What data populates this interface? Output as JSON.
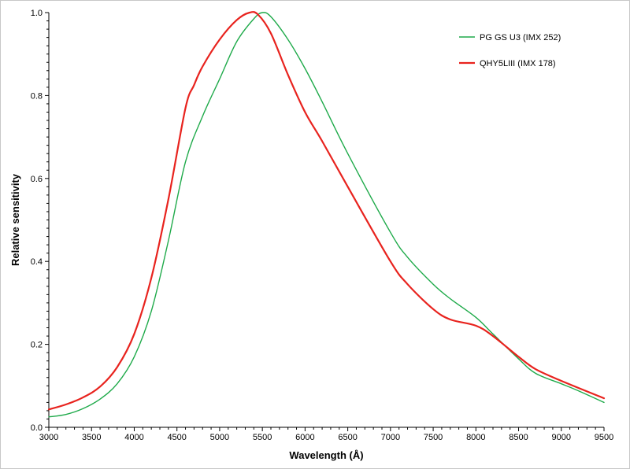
{
  "chart_data": {
    "type": "line",
    "title": "",
    "xlabel": "Wavelength (Å)",
    "ylabel": "Relative sensitivity",
    "xlim": [
      3000,
      9500
    ],
    "ylim": [
      0,
      1.0
    ],
    "x_ticks": [
      "3000",
      "3500",
      "4000",
      "4500",
      "5000",
      "5500",
      "6000",
      "6500",
      "7000",
      "7500",
      "8000",
      "8500",
      "9000",
      "9500"
    ],
    "y_ticks": [
      "0.0",
      "0.2",
      "0.4",
      "0.6",
      "0.8",
      "1.0"
    ],
    "grid": false,
    "legend_position": "top-right",
    "series": [
      {
        "name": "PG GS U3 (IMX 252)",
        "color": "#1faa4a",
        "points": [
          [
            3000,
            0.025
          ],
          [
            3200,
            0.031
          ],
          [
            3400,
            0.045
          ],
          [
            3600,
            0.068
          ],
          [
            3800,
            0.105
          ],
          [
            4000,
            0.17
          ],
          [
            4200,
            0.28
          ],
          [
            4400,
            0.45
          ],
          [
            4600,
            0.64
          ],
          [
            4800,
            0.75
          ],
          [
            5000,
            0.84
          ],
          [
            5200,
            0.93
          ],
          [
            5400,
            0.985
          ],
          [
            5500,
            1.0
          ],
          [
            5600,
            0.99
          ],
          [
            5800,
            0.935
          ],
          [
            6000,
            0.865
          ],
          [
            6200,
            0.785
          ],
          [
            6500,
            0.66
          ],
          [
            7000,
            0.47
          ],
          [
            7200,
            0.41
          ],
          [
            7500,
            0.345
          ],
          [
            7700,
            0.31
          ],
          [
            8000,
            0.265
          ],
          [
            8200,
            0.225
          ],
          [
            8500,
            0.165
          ],
          [
            8700,
            0.13
          ],
          [
            9000,
            0.105
          ],
          [
            9200,
            0.088
          ],
          [
            9500,
            0.06
          ]
        ]
      },
      {
        "name": "QHY5LIII (IMX 178)",
        "color": "#e8231e",
        "points": [
          [
            3000,
            0.043
          ],
          [
            3200,
            0.055
          ],
          [
            3400,
            0.072
          ],
          [
            3600,
            0.098
          ],
          [
            3800,
            0.145
          ],
          [
            4000,
            0.225
          ],
          [
            4200,
            0.36
          ],
          [
            4400,
            0.55
          ],
          [
            4600,
            0.77
          ],
          [
            4700,
            0.825
          ],
          [
            4800,
            0.87
          ],
          [
            5000,
            0.935
          ],
          [
            5200,
            0.982
          ],
          [
            5350,
            1.0
          ],
          [
            5450,
            0.995
          ],
          [
            5600,
            0.95
          ],
          [
            5800,
            0.85
          ],
          [
            6000,
            0.76
          ],
          [
            6200,
            0.69
          ],
          [
            6500,
            0.58
          ],
          [
            7000,
            0.4
          ],
          [
            7200,
            0.345
          ],
          [
            7500,
            0.285
          ],
          [
            7700,
            0.26
          ],
          [
            8000,
            0.245
          ],
          [
            8200,
            0.22
          ],
          [
            8500,
            0.17
          ],
          [
            8700,
            0.14
          ],
          [
            9000,
            0.112
          ],
          [
            9500,
            0.07
          ]
        ]
      }
    ]
  }
}
